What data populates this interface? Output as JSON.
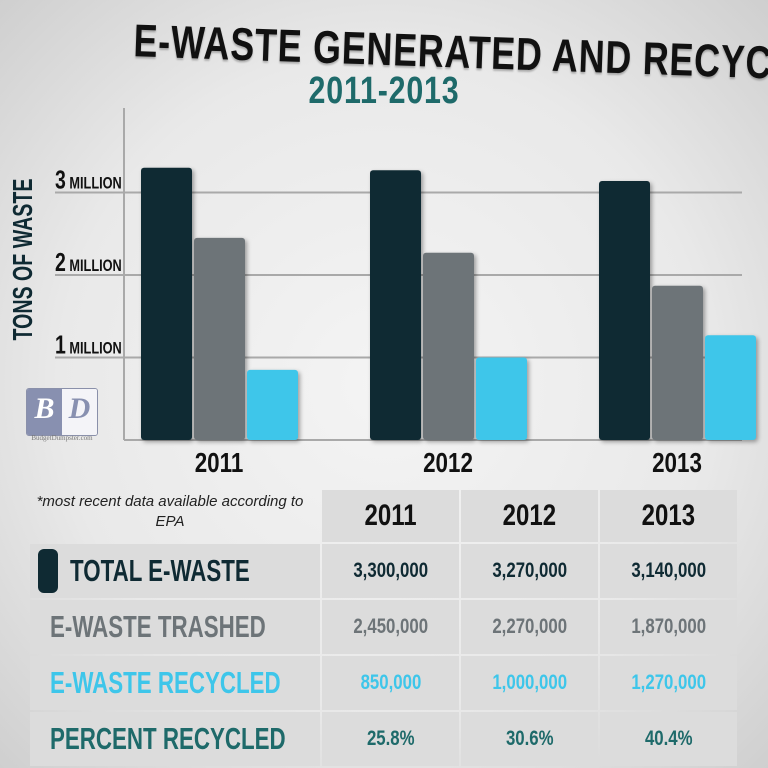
{
  "title": "E-WASTE GENERATED AND RECYCLED",
  "subtitle": "2011-2013",
  "brand": {
    "logo_text": "BD",
    "caption": "BudgetDumpster.com"
  },
  "note": "*most recent data available according to EPA",
  "colors": {
    "total": "#0f2a33",
    "trashed": "#6d7478",
    "recycled": "#3ec6ea",
    "percent": "#1e6a6a"
  },
  "chart_data": {
    "type": "bar",
    "title": "E-WASTE GENERATED AND RECYCLED",
    "subtitle": "2011-2013",
    "ylabel": "TONS OF WASTE",
    "xlabel": "",
    "categories": [
      "2011",
      "2012",
      "2013"
    ],
    "ylim": [
      0,
      4000000
    ],
    "yticks": [
      {
        "value": 1000000,
        "num": "1",
        "unit": "MILLION"
      },
      {
        "value": 2000000,
        "num": "2",
        "unit": "MILLION"
      },
      {
        "value": 3000000,
        "num": "3",
        "unit": "MILLION"
      }
    ],
    "grid": true,
    "series": [
      {
        "name": "TOTAL E-WASTE",
        "color": "#0f2a33",
        "values": [
          3300000,
          3270000,
          3140000
        ]
      },
      {
        "name": "E-WASTE TRASHED",
        "color": "#6d7478",
        "values": [
          2450000,
          2270000,
          1870000
        ]
      },
      {
        "name": "E-WASTE RECYCLED",
        "color": "#3ec6ea",
        "values": [
          850000,
          1000000,
          1270000
        ]
      }
    ]
  },
  "table": {
    "headers": [
      "2011",
      "2012",
      "2013"
    ],
    "rows": [
      {
        "label": "TOTAL E-WASTE",
        "color": "#0f2a33",
        "values": [
          "3,300,000",
          "3,270,000",
          "3,140,000"
        ]
      },
      {
        "label": "E-WASTE TRASHED",
        "color": "#6d7478",
        "values": [
          "2,450,000",
          "2,270,000",
          "1,870,000"
        ]
      },
      {
        "label": "E-WASTE RECYCLED",
        "color": "#3ec6ea",
        "values": [
          "850,000",
          "1,000,000",
          "1,270,000"
        ]
      },
      {
        "label": "PERCENT RECYCLED",
        "color": "#1e6a6a",
        "values": [
          "25.8%",
          "30.6%",
          "40.4%"
        ]
      }
    ]
  }
}
